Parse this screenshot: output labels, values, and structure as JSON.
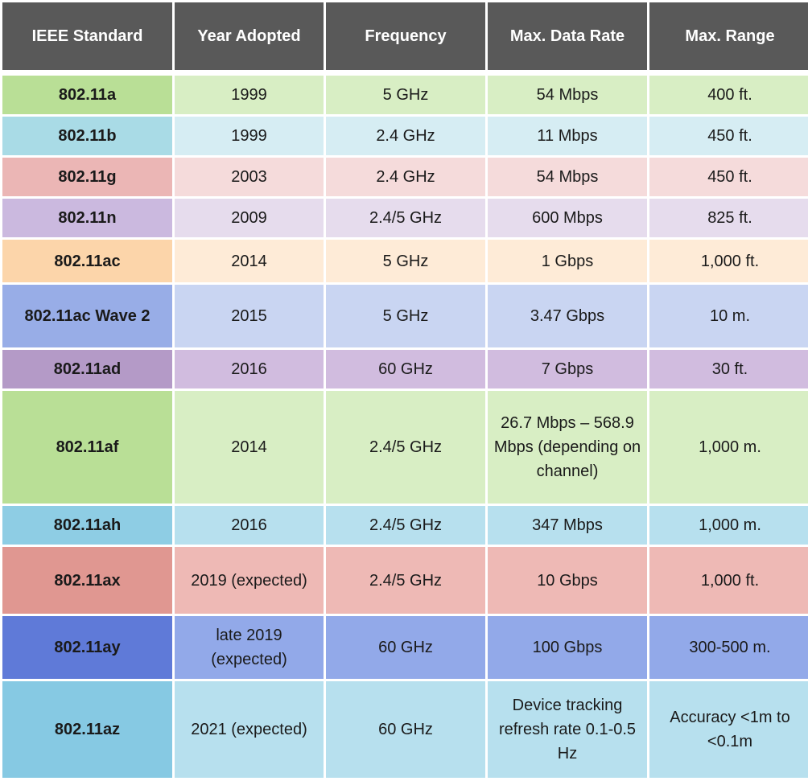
{
  "table": {
    "headers": [
      "IEEE Standard",
      "Year Adopted",
      "Frequency",
      "Max. Data Rate",
      "Max. Range"
    ],
    "rows": [
      {
        "cells": [
          "802.11a",
          "1999",
          "5 GHz",
          "54 Mbps",
          "400 ft."
        ],
        "label_color": "#b9df96",
        "cell_color": "#d8eec4"
      },
      {
        "cells": [
          "802.11b",
          "1999",
          "2.4 GHz",
          "11 Mbps",
          "450 ft."
        ],
        "label_color": "#a9dbe6",
        "cell_color": "#d6edf3"
      },
      {
        "cells": [
          "802.11g",
          "2003",
          "2.4 GHz",
          "54 Mbps",
          "450 ft."
        ],
        "label_color": "#ebb6b5",
        "cell_color": "#f5dbdb"
      },
      {
        "cells": [
          "802.11n",
          "2009",
          "2.4/5 GHz",
          "600 Mbps",
          "825 ft."
        ],
        "label_color": "#cbb9df",
        "cell_color": "#e6dced"
      },
      {
        "cells": [
          "802.11ac",
          "2014",
          "5 GHz",
          "1 Gbps",
          "1,000 ft."
        ],
        "label_color": "#fcd5aa",
        "cell_color": "#feebd7"
      },
      {
        "cells": [
          "802.11ac Wave 2",
          "2015",
          "5 GHz",
          "3.47 Gbps",
          "10 m."
        ],
        "label_color": "#98ade7",
        "cell_color": "#c9d5f2"
      },
      {
        "cells": [
          "802.11ad",
          "2016",
          "60 GHz",
          "7 Gbps",
          "30 ft."
        ],
        "label_color": "#b49ac7",
        "cell_color": "#d1bcdf"
      },
      {
        "cells": [
          "802.11af",
          "2014",
          "2.4/5 GHz",
          "26.7 Mbps – 568.9 Mbps (depending on channel)",
          "1,000 m."
        ],
        "label_color": "#b9df96",
        "cell_color": "#d8eec4"
      },
      {
        "cells": [
          "802.11ah",
          "2016",
          "2.4/5 GHz",
          "347 Mbps",
          "1,000 m."
        ],
        "label_color": "#8ecde4",
        "cell_color": "#b7e0ee"
      },
      {
        "cells": [
          "802.11ax",
          "2019 (expected)",
          "2.4/5 GHz",
          "10 Gbps",
          "1,000 ft."
        ],
        "label_color": "#e09791",
        "cell_color": "#eeb9b5"
      },
      {
        "cells": [
          "802.11ay",
          "late 2019 (expected)",
          "60 GHz",
          "100 Gbps",
          "300-500 m."
        ],
        "label_color": "#5f7ad8",
        "cell_color": "#92a9e9"
      },
      {
        "cells": [
          "802.11az",
          "2021 (expected)",
          "60 GHz",
          "Device tracking refresh rate 0.1-0.5 Hz",
          "Accuracy <1m to <0.1m"
        ],
        "label_color": "#86c9e3",
        "cell_color": "#b7e0ee"
      }
    ]
  }
}
